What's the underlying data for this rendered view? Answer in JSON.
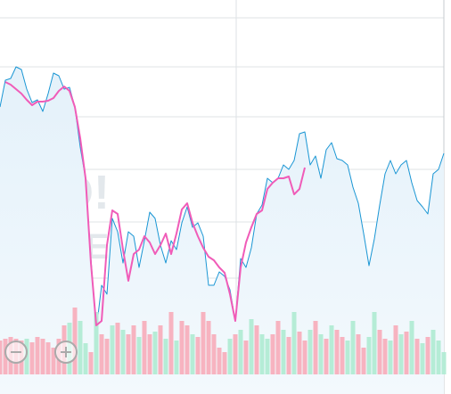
{
  "chart_data": {
    "type": "line",
    "watermark": [
      "HOO!",
      "NANCE"
    ],
    "x": [
      0,
      6,
      12,
      18,
      24,
      30,
      36,
      42,
      48,
      54,
      60,
      66,
      72,
      78,
      84,
      90,
      96,
      102,
      108,
      114,
      120,
      126,
      132,
      138,
      144,
      150,
      156,
      162,
      168,
      174,
      180,
      186,
      192,
      198,
      204,
      210,
      216,
      222,
      228,
      234,
      240,
      246,
      252,
      258,
      264,
      270,
      276,
      282,
      288,
      294,
      300,
      306,
      312,
      318,
      324,
      330,
      336,
      342,
      348,
      354,
      360,
      366,
      372,
      378,
      384,
      390,
      396,
      402,
      408,
      414,
      420,
      426,
      432,
      438,
      444,
      450,
      456,
      462,
      468,
      474,
      480,
      486,
      492,
      498
    ],
    "xlim": [
      0,
      498
    ],
    "ylim": [
      0,
      442
    ],
    "yticks": [
      422,
      367,
      311,
      252,
      193,
      130,
      64
    ],
    "grid": true,
    "y2lim": [
      0,
      100
    ],
    "series": [
      {
        "color": "#1a96d4",
        "area": true,
        "values": [
          322,
          352,
          354,
          367,
          364,
          342,
          327,
          330,
          317,
          337,
          360,
          357,
          342,
          344,
          322,
          277,
          242,
          152,
          72,
          122,
          112,
          197,
          182,
          147,
          182,
          177,
          142,
          172,
          204,
          197,
          167,
          147,
          172,
          162,
          192,
          210,
          187,
          192,
          177,
          122,
          122,
          137,
          132,
          117,
          82,
          152,
          142,
          164,
          202,
          212,
          242,
          237,
          242,
          257,
          252,
          262,
          292,
          294,
          257,
          267,
          242,
          274,
          282,
          264,
          262,
          257,
          232,
          214,
          180,
          144,
          174,
          212,
          247,
          262,
          247,
          257,
          262,
          237,
          217,
          210,
          202,
          247,
          252,
          270
        ]
      },
      {
        "color": "#f05cb8",
        "values": [
          null,
          350,
          347,
          342,
          337,
          330,
          324,
          328,
          328,
          329,
          332,
          340,
          345,
          340,
          322,
          287,
          242,
          147,
          77,
          82,
          167,
          206,
          202,
          162,
          127,
          157,
          162,
          177,
          170,
          157,
          167,
          180,
          157,
          180,
          207,
          214,
          192,
          177,
          164,
          154,
          150,
          142,
          136,
          112,
          82,
          142,
          170,
          187,
          202,
          206,
          230,
          237,
          242,
          242,
          244,
          224,
          230,
          254,
          null,
          null,
          null,
          null,
          null,
          null,
          null,
          null,
          null,
          null,
          null,
          null,
          null,
          null,
          null,
          null,
          null,
          null,
          null,
          null,
          null,
          null,
          null,
          null,
          null,
          null
        ]
      },
      {
        "type": "bar",
        "axis": "y2",
        "color": "#f7b3c0",
        "values": [
          38,
          40,
          42,
          40,
          38,
          null,
          36,
          42,
          40,
          36,
          30,
          40,
          55,
          null,
          75,
          null,
          null,
          25,
          null,
          45,
          40,
          null,
          58,
          null,
          45,
          55,
          null,
          60,
          45,
          null,
          55,
          null,
          70,
          null,
          60,
          55,
          null,
          42,
          70,
          60,
          45,
          30,
          25,
          null,
          45,
          null,
          38,
          null,
          55,
          null,
          null,
          45,
          60,
          null,
          42,
          null,
          48,
          38,
          null,
          60,
          null,
          40,
          null,
          50,
          42,
          null,
          null,
          45,
          30,
          null,
          null,
          50,
          40,
          null,
          55,
          null,
          48,
          null,
          40,
          null,
          42,
          null,
          null,
          null
        ]
      },
      {
        "type": "bar",
        "axis": "y2",
        "color": "#b5ecd6",
        "values": [
          null,
          null,
          null,
          null,
          null,
          40,
          null,
          null,
          null,
          null,
          null,
          null,
          null,
          58,
          null,
          60,
          35,
          null,
          70,
          null,
          null,
          55,
          null,
          50,
          null,
          null,
          42,
          null,
          null,
          48,
          null,
          40,
          null,
          38,
          null,
          null,
          45,
          null,
          null,
          null,
          null,
          null,
          null,
          40,
          null,
          50,
          null,
          62,
          null,
          45,
          40,
          null,
          null,
          50,
          null,
          70,
          null,
          null,
          50,
          null,
          45,
          null,
          55,
          null,
          null,
          38,
          60,
          null,
          null,
          42,
          70,
          null,
          null,
          38,
          null,
          45,
          null,
          60,
          null,
          35,
          null,
          50,
          38,
          25
        ]
      }
    ]
  }
}
